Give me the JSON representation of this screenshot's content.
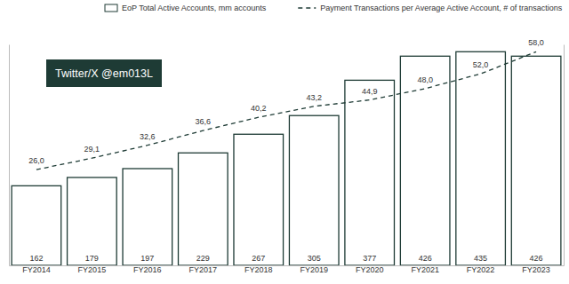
{
  "chart_data": {
    "type": "bar",
    "categories": [
      "FY2014",
      "FY2015",
      "FY2016",
      "FY2017",
      "FY2018",
      "FY2019",
      "FY2020",
      "FY2021",
      "FY2022",
      "FY2023"
    ],
    "series": [
      {
        "name": "EoP Total Active Accounts, mm accounts",
        "type": "bar",
        "color": "#1e3b35",
        "values": [
          162,
          179,
          197,
          229,
          267,
          305,
          377,
          426,
          435,
          426
        ]
      },
      {
        "name": "Payment Transactions per Average Active Account, # of transactions",
        "type": "line",
        "axis": "y2",
        "color": "#1e3b35",
        "line_style": "dashed",
        "values": [
          26.0,
          29.1,
          32.6,
          36.6,
          40.2,
          43.2,
          44.9,
          48.0,
          52.0,
          58.0
        ],
        "value_labels": [
          "26,0",
          "29,1",
          "32,6",
          "36,6",
          "40,2",
          "43,2",
          "44,9",
          "48,0",
          "52,0",
          "58,0"
        ]
      }
    ],
    "ylim": [
      0,
      450
    ],
    "yticks": [],
    "y2lim": [
      0,
      60
    ],
    "y2ticks": [],
    "grid": false,
    "legend": "top",
    "data_labels": true,
    "tick_labels": "x",
    "annotations": [
      "Twitter/X @em013L"
    ]
  }
}
